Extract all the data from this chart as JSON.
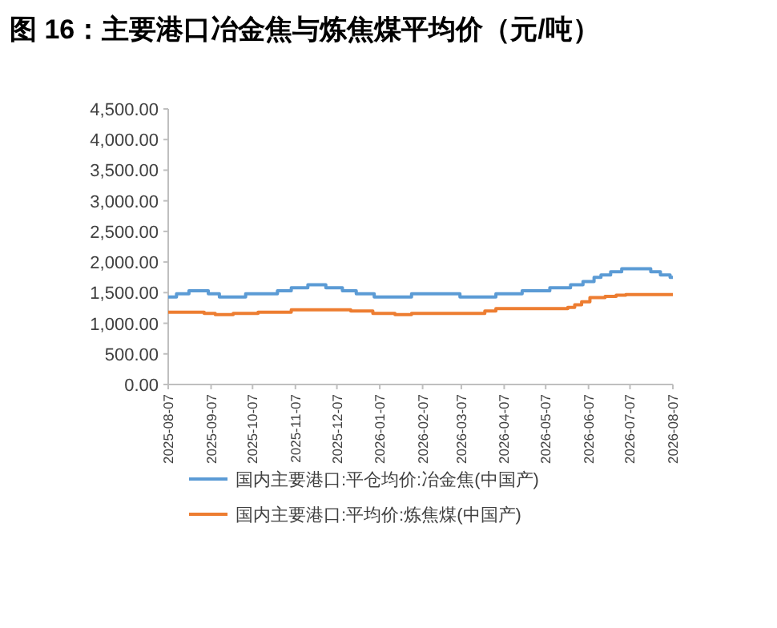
{
  "chart_data": {
    "type": "step",
    "title": "图 16：主要港口冶金焦与炼焦煤平均价（元/吨）",
    "xlim": [
      "2025-08-07",
      "2026-08-07"
    ],
    "xticks": [
      "2025-08-07",
      "2025-09-07",
      "2025-10-07",
      "2025-11-07",
      "2025-12-07",
      "2026-01-07",
      "2026-02-07",
      "2026-03-07",
      "2026-04-07",
      "2026-05-07",
      "2026-06-07",
      "2026-07-07",
      "2026-08-07"
    ],
    "ylim": [
      0,
      4500
    ],
    "yticks": [
      {
        "value": 0,
        "label": "0.00"
      },
      {
        "value": 500,
        "label": "500.00"
      },
      {
        "value": 1000,
        "label": "1,000.00"
      },
      {
        "value": 1500,
        "label": "1,500.00"
      },
      {
        "value": 2000,
        "label": "2,000.00"
      },
      {
        "value": 2500,
        "label": "2,500.00"
      },
      {
        "value": 3000,
        "label": "3,000.00"
      },
      {
        "value": 3500,
        "label": "3,500.00"
      },
      {
        "value": 4000,
        "label": "4,000.00"
      },
      {
        "value": 4500,
        "label": "4,500.00"
      }
    ],
    "grid": false,
    "legend": "bottom",
    "marker": "none",
    "line_style": "solid",
    "series": [
      {
        "name": "国内主要港口:平仓均价:冶金焦(中国产)",
        "color": "#5b9bd5",
        "x": [
          "2025-08-07",
          "2025-08-13",
          "2025-08-22",
          "2025-09-05",
          "2025-09-13",
          "2025-10-02",
          "2025-10-25",
          "2025-11-04",
          "2025-11-16",
          "2025-11-29",
          "2025-12-11",
          "2025-12-21",
          "2026-01-03",
          "2026-01-30",
          "2026-03-06",
          "2026-04-01",
          "2026-04-20",
          "2026-05-10",
          "2026-05-25",
          "2026-06-03",
          "2026-06-11",
          "2026-06-16",
          "2026-06-23",
          "2026-07-01",
          "2026-07-22",
          "2026-07-29",
          "2026-08-05",
          "2026-08-07"
        ],
        "values": [
          1430,
          1480,
          1530,
          1480,
          1430,
          1480,
          1530,
          1580,
          1630,
          1580,
          1530,
          1480,
          1430,
          1480,
          1430,
          1480,
          1530,
          1580,
          1630,
          1680,
          1750,
          1790,
          1840,
          1890,
          1840,
          1790,
          1750,
          1750
        ]
      },
      {
        "name": "国内主要港口:平均价:炼焦煤(中国产)",
        "color": "#ed7d31",
        "x": [
          "2025-08-07",
          "2025-09-02",
          "2025-09-10",
          "2025-09-23",
          "2025-10-11",
          "2025-11-04",
          "2025-12-17",
          "2026-01-02",
          "2026-01-18",
          "2026-01-30",
          "2026-03-24",
          "2026-04-01",
          "2026-05-23",
          "2026-05-28",
          "2026-06-02",
          "2026-06-08",
          "2026-06-19",
          "2026-06-27",
          "2026-07-04",
          "2026-08-07"
        ],
        "values": [
          1180,
          1160,
          1140,
          1160,
          1180,
          1220,
          1200,
          1160,
          1140,
          1160,
          1200,
          1240,
          1260,
          1300,
          1350,
          1420,
          1440,
          1460,
          1470,
          1470
        ]
      }
    ]
  }
}
